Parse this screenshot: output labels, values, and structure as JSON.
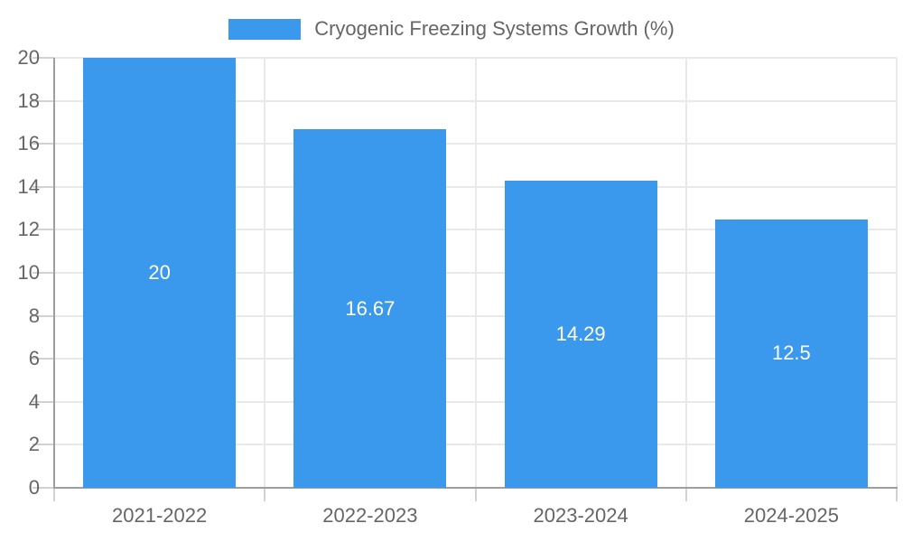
{
  "chart_data": {
    "type": "bar",
    "title": "Cryogenic Freezing Systems Growth (%)",
    "series_name": "Cryogenic Freezing Systems Growth (%)",
    "categories": [
      "2021-2022",
      "2022-2023",
      "2023-2024",
      "2024-2025"
    ],
    "values": [
      20,
      16.67,
      14.29,
      12.5
    ],
    "value_labels": [
      "20",
      "16.67",
      "14.29",
      "12.5"
    ],
    "xlabel": "",
    "ylabel": "",
    "ylim": [
      0,
      20
    ],
    "yticks": [
      0,
      2,
      4,
      6,
      8,
      10,
      12,
      14,
      16,
      18,
      20
    ],
    "grid": true,
    "legend_position": "top"
  },
  "colors": {
    "bar": "#3A99EC",
    "bar_label": "#FFFFFF",
    "grid": "#E9E9E9",
    "tick": "#D2D2D2",
    "axis": "#9E9E9E",
    "text": "#666666",
    "background": "#FFFFFF"
  }
}
